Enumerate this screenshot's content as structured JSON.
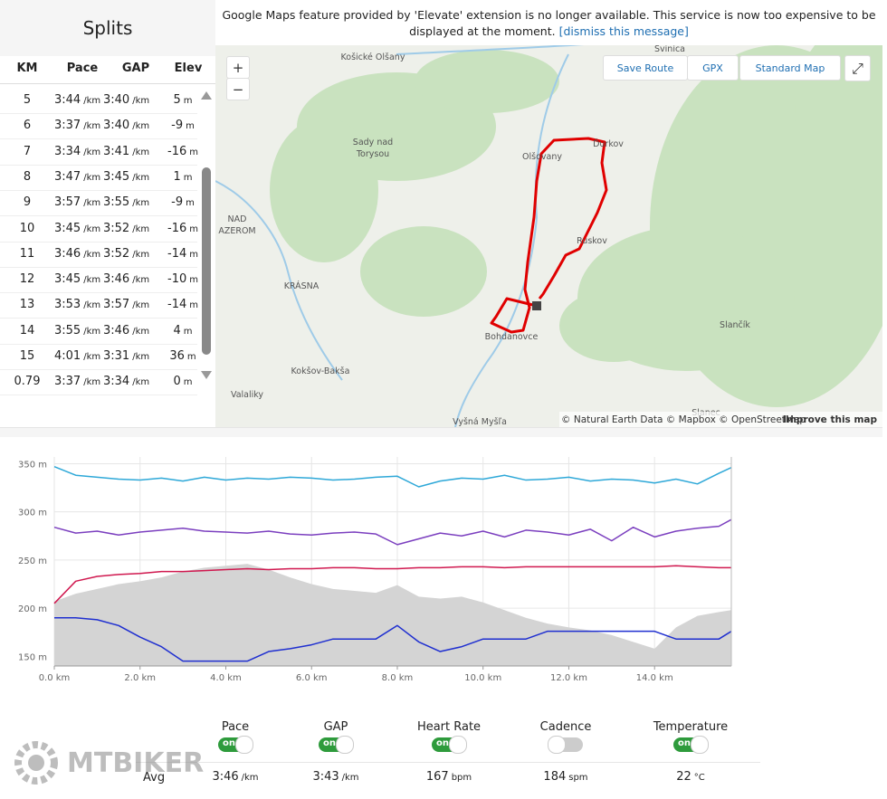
{
  "splits": {
    "title": "Splits",
    "headers": [
      "KM",
      "Pace",
      "GAP",
      "Elev"
    ],
    "pace_unit": "/km",
    "elev_unit": "m",
    "rows": [
      [
        "5",
        "3:44",
        "3:40",
        "5"
      ],
      [
        "6",
        "3:37",
        "3:40",
        "-9"
      ],
      [
        "7",
        "3:34",
        "3:41",
        "-16"
      ],
      [
        "8",
        "3:47",
        "3:45",
        "1"
      ],
      [
        "9",
        "3:57",
        "3:55",
        "-9"
      ],
      [
        "10",
        "3:45",
        "3:52",
        "-16"
      ],
      [
        "11",
        "3:46",
        "3:52",
        "-14"
      ],
      [
        "12",
        "3:45",
        "3:46",
        "-10"
      ],
      [
        "13",
        "3:53",
        "3:57",
        "-14"
      ],
      [
        "14",
        "3:55",
        "3:46",
        "4"
      ],
      [
        "15",
        "4:01",
        "3:31",
        "36"
      ],
      [
        "0.79",
        "3:37",
        "3:34",
        "0"
      ]
    ]
  },
  "banner": {
    "text": "Google Maps feature provided by 'Elevate' extension is no longer available. This service is now too expensive to be displayed at the moment.",
    "link": "[dismiss this message]"
  },
  "map": {
    "zoom": [
      "+",
      "−"
    ],
    "buttons": [
      "Save Route",
      "GPX",
      "Standard Map"
    ],
    "labels": [
      "Košické Olšany",
      "Svinica",
      "Sady nad",
      "Torysou",
      "Olšovany",
      "Ďurkov",
      "NAD",
      "AZEROM",
      "Ruskov",
      "KRÁSNA",
      "Bohdanovce",
      "Kokšov-Bakša",
      "Valaliky",
      "Vyšná Myšľa",
      "Slančík",
      "Slanec"
    ],
    "attribution": "© Natural Earth Data © Mapbox © OpenStreetMap",
    "improve": "Improve this map"
  },
  "chart_data": {
    "type": "line",
    "x": [
      0,
      0.5,
      1,
      1.5,
      2,
      2.5,
      3,
      3.5,
      4,
      4.5,
      5,
      5.5,
      6,
      6.5,
      7,
      7.5,
      8,
      8.5,
      9,
      9.5,
      10,
      10.5,
      11,
      11.5,
      12,
      12.5,
      13,
      13.5,
      14,
      14.5,
      15,
      15.5,
      15.79
    ],
    "xlim": [
      0,
      15.79
    ],
    "ylim": [
      140,
      357
    ],
    "xticks": [
      {
        "value": 0,
        "label": "0.0 km"
      },
      {
        "value": 2,
        "label": "2.0 km"
      },
      {
        "value": 4,
        "label": "4.0 km"
      },
      {
        "value": 6,
        "label": "6.0 km"
      },
      {
        "value": 8,
        "label": "8.0 km"
      },
      {
        "value": 10,
        "label": "10.0 km"
      },
      {
        "value": 12,
        "label": "12.0 km"
      },
      {
        "value": 14,
        "label": "14.0 km"
      }
    ],
    "yticks": [
      {
        "value": 150,
        "label": "150 m"
      },
      {
        "value": 200,
        "label": "200 m"
      },
      {
        "value": 250,
        "label": "250 m"
      },
      {
        "value": 300,
        "label": "300 m"
      },
      {
        "value": 350,
        "label": "350 m"
      }
    ],
    "grid": true,
    "area": {
      "color": "#d4d4d4",
      "values": [
        207,
        215,
        220,
        225,
        228,
        232,
        238,
        242,
        244,
        246,
        240,
        232,
        225,
        220,
        218,
        216,
        224,
        212,
        210,
        212,
        206,
        198,
        190,
        184,
        180,
        177,
        172,
        165,
        158,
        180,
        192,
        196,
        198
      ]
    },
    "series": [
      {
        "color": "#2ea8d8",
        "values": [
          347,
          338,
          336,
          334,
          333,
          335,
          332,
          336,
          333,
          335,
          334,
          336,
          335,
          333,
          334,
          336,
          337,
          326,
          332,
          335,
          334,
          338,
          333,
          334,
          336,
          332,
          334,
          333,
          330,
          334,
          329,
          340,
          346
        ]
      },
      {
        "color": "#7b3fbf",
        "values": [
          284,
          278,
          280,
          276,
          279,
          281,
          283,
          280,
          279,
          278,
          280,
          277,
          276,
          278,
          279,
          277,
          266,
          272,
          278,
          275,
          280,
          274,
          281,
          279,
          276,
          282,
          270,
          284,
          274,
          280,
          283,
          285,
          292
        ]
      },
      {
        "color": "#d0184f",
        "values": [
          205,
          228,
          233,
          235,
          236,
          238,
          238,
          239,
          240,
          241,
          240,
          241,
          241,
          242,
          242,
          241,
          241,
          242,
          242,
          243,
          243,
          242,
          243,
          243,
          243,
          243,
          243,
          243,
          243,
          244,
          243,
          242,
          242
        ]
      },
      {
        "color": "#1f2fd0",
        "values": [
          190,
          190,
          188,
          182,
          170,
          160,
          145,
          145,
          145,
          145,
          155,
          158,
          162,
          168,
          168,
          168,
          182,
          165,
          155,
          160,
          168,
          168,
          168,
          176,
          176,
          176,
          176,
          176,
          176,
          168,
          168,
          168,
          176
        ]
      }
    ]
  },
  "stats": {
    "avg_label": "Avg",
    "toggle_text": "on",
    "items": [
      {
        "label": "Pace",
        "on": true,
        "avg": "3:46",
        "unit": "/km"
      },
      {
        "label": "GAP",
        "on": true,
        "avg": "3:43",
        "unit": "/km"
      },
      {
        "label": "Heart Rate",
        "on": true,
        "avg": "167",
        "unit": "bpm"
      },
      {
        "label": "Cadence",
        "on": false,
        "avg": "184",
        "unit": "spm"
      },
      {
        "label": "Temperature",
        "on": true,
        "avg": "22",
        "unit": "°C"
      }
    ]
  },
  "watermark": "MTBIKER"
}
